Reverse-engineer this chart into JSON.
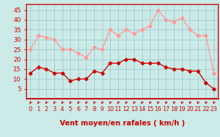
{
  "hours": [
    0,
    1,
    2,
    3,
    4,
    5,
    6,
    7,
    8,
    9,
    10,
    11,
    12,
    13,
    14,
    15,
    16,
    17,
    18,
    19,
    20,
    21,
    22,
    23
  ],
  "wind_avg": [
    13,
    16,
    15,
    13,
    13,
    9,
    10,
    10,
    14,
    13,
    18,
    18,
    20,
    20,
    18,
    18,
    18,
    16,
    15,
    15,
    14,
    14,
    8,
    5
  ],
  "wind_gust": [
    25,
    32,
    31,
    30,
    25,
    25,
    23,
    21,
    26,
    25,
    35,
    32,
    35,
    33,
    35,
    37,
    45,
    40,
    39,
    41,
    35,
    32,
    32,
    13
  ],
  "xlabel": "Vent moyen/en rafales ( km/h )",
  "ylim": [
    0,
    48
  ],
  "yticks": [
    5,
    10,
    15,
    20,
    25,
    30,
    35,
    40,
    45
  ],
  "bg_color": "#cceae7",
  "grid_color": "#99cccc",
  "line_avg_color": "#cc0000",
  "line_gust_color": "#ff9999",
  "marker_size": 2.5,
  "line_width": 1.0,
  "xlabel_fontsize": 7.5,
  "ytick_fontsize": 6.5,
  "xtick_fontsize": 6.0
}
